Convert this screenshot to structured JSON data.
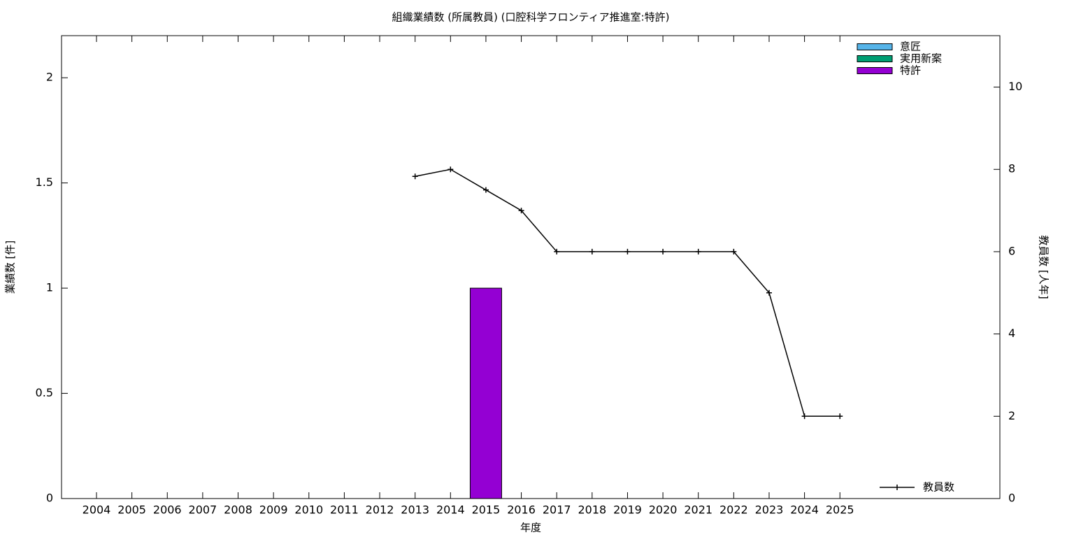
{
  "chart_data": {
    "type": "bar",
    "title": "組織業績数 (所属教員) (口腔科学フロンティア推進室:特許)",
    "xlabel": "年度",
    "ylabel": "業績数 [件]",
    "y2label": "教員数 [人年]",
    "categories": [
      "2004",
      "2005",
      "2006",
      "2007",
      "2008",
      "2009",
      "2010",
      "2011",
      "2012",
      "2013",
      "2014",
      "2015",
      "2016",
      "2017",
      "2018",
      "2019",
      "2020",
      "2021",
      "2022",
      "2023",
      "2024",
      "2025"
    ],
    "stacked": true,
    "series": [
      {
        "name": "意匠",
        "color": "#56b4e9",
        "values": [
          0,
          0,
          0,
          0,
          0,
          0,
          0,
          0,
          0,
          0,
          0,
          0,
          0,
          0,
          0,
          0,
          0,
          0,
          0,
          0,
          0,
          0
        ]
      },
      {
        "name": "実用新案",
        "color": "#009e73",
        "values": [
          0,
          0,
          0,
          0,
          0,
          0,
          0,
          0,
          0,
          0,
          0,
          0,
          0,
          0,
          0,
          0,
          0,
          0,
          0,
          0,
          0,
          0
        ]
      },
      {
        "name": "特許",
        "color": "#9400d3",
        "values": [
          0,
          0,
          0,
          0,
          0,
          0,
          0,
          0,
          0,
          0,
          0,
          1,
          0,
          0,
          0,
          0,
          0,
          0,
          0,
          0,
          0,
          0
        ]
      },
      {
        "name": "教員数",
        "color": "#000000",
        "type": "line",
        "axis": "y2",
        "legend_corner": "bottom-right",
        "values": [
          null,
          null,
          null,
          null,
          null,
          null,
          null,
          null,
          null,
          7.83,
          8,
          7.5,
          7,
          6,
          6,
          6,
          6,
          6,
          6,
          5,
          2,
          2
        ]
      }
    ],
    "legend": "top-right",
    "ylim": [
      0,
      2.2
    ],
    "yticks": [
      0,
      0.5,
      1,
      1.5,
      2
    ],
    "y2lim": [
      0,
      11.25
    ],
    "y2ticks": [
      0,
      2,
      4,
      6,
      8,
      10
    ]
  }
}
